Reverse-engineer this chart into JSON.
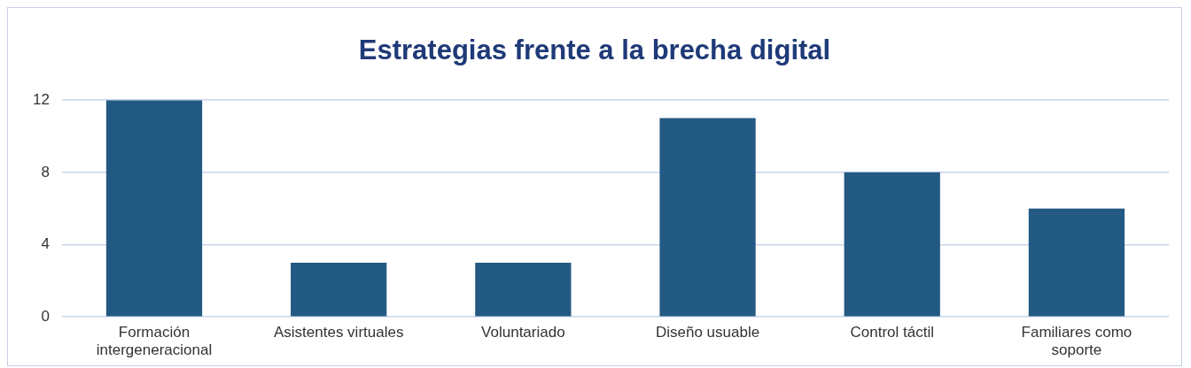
{
  "chart_data": {
    "type": "bar",
    "title": "Estrategias frente a la brecha digital",
    "categories": [
      "Formación intergeneracional",
      "Asistentes virtuales",
      "Voluntariado",
      "Diseño usuable",
      "Control táctil",
      "Familiares como soporte"
    ],
    "values": [
      12,
      3,
      3,
      11,
      8,
      6
    ],
    "color": "#235a84",
    "ylim": [
      0,
      12
    ],
    "yticks": [
      0,
      4,
      8,
      12
    ],
    "grid": "y",
    "legend": false
  }
}
